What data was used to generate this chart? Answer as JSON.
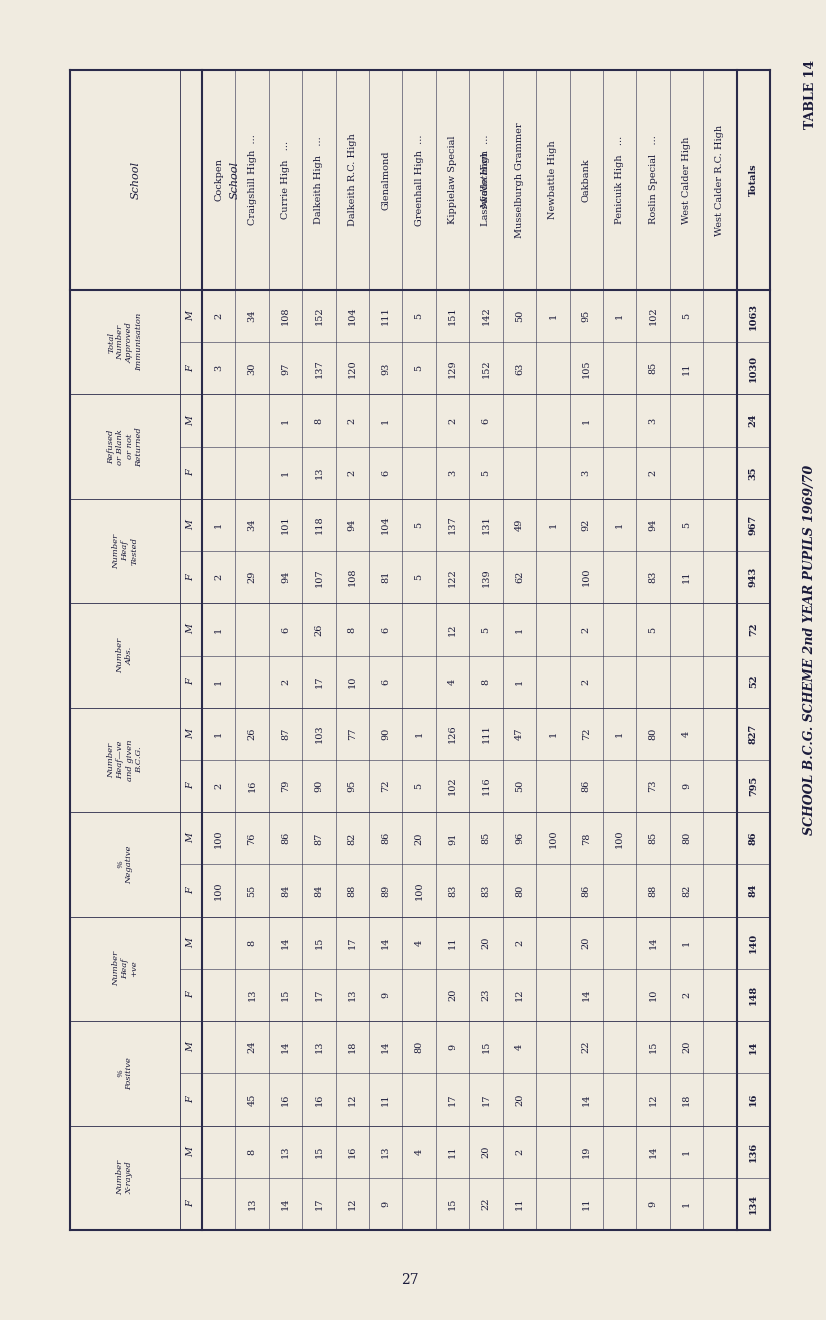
{
  "title": "SCHOOL B.C.G. SCHEME 2nd YEAR PUPILS 1969/70",
  "table_label": "TABLE 14",
  "region_label": "Midlothian",
  "col_label": "School",
  "schools": [
    "Cockpen",
    "Craigshill High  ...",
    "Currie High   ...",
    "Dalkeith High   ...",
    "Dalkeith R.C. High",
    "Glenalmond",
    "Greenhall High  ...",
    "Kippielaw Special",
    "Lasswade High  ...",
    "Musselburgh Grammer",
    "Newbattle High",
    "Oakbank",
    "Penicuik High   ...",
    "Roslin Special   ...",
    "West Calder High",
    "West Calder R.C. High",
    "Totals"
  ],
  "col_groups": [
    {
      "header": "Total\nNumber\nApproved\nImmunisation",
      "sub": [
        "M",
        "F"
      ],
      "data_M": [
        2,
        34,
        108,
        152,
        104,
        111,
        5,
        151,
        142,
        50,
        1,
        95,
        1,
        102,
        5,
        "",
        1063
      ],
      "data_F": [
        3,
        30,
        97,
        137,
        120,
        93,
        5,
        129,
        152,
        63,
        "",
        105,
        "",
        85,
        11,
        "",
        1030
      ]
    },
    {
      "header": "Refused\nor Blank\nor not\nReturned",
      "sub": [
        "M",
        "F"
      ],
      "data_M": [
        "",
        "",
        1,
        8,
        2,
        1,
        "",
        2,
        6,
        "",
        "",
        1,
        "",
        3,
        "",
        "",
        24
      ],
      "data_F": [
        "",
        "",
        1,
        13,
        2,
        6,
        "",
        3,
        5,
        "",
        "",
        3,
        "",
        2,
        "",
        "",
        35
      ]
    },
    {
      "header": "Number\nHeaf\nTested",
      "sub": [
        "M",
        "F"
      ],
      "data_M": [
        1,
        34,
        101,
        118,
        94,
        104,
        5,
        137,
        131,
        49,
        1,
        92,
        1,
        94,
        5,
        "",
        967
      ],
      "data_F": [
        2,
        29,
        94,
        107,
        108,
        81,
        5,
        122,
        139,
        62,
        "",
        100,
        "",
        83,
        11,
        "",
        943
      ]
    },
    {
      "header": "Number\nAbs.",
      "sub": [
        "M",
        "F"
      ],
      "data_M": [
        1,
        "",
        6,
        26,
        8,
        6,
        "",
        12,
        5,
        1,
        "",
        2,
        "",
        5,
        "",
        "",
        72
      ],
      "data_F": [
        1,
        "",
        2,
        17,
        10,
        6,
        "",
        4,
        8,
        1,
        "",
        2,
        "",
        "",
        "",
        "",
        52
      ]
    },
    {
      "header": "Number\nHeaf—ve\nand given\nB.C.G.",
      "sub": [
        "M",
        "F"
      ],
      "data_M": [
        1,
        26,
        87,
        103,
        77,
        90,
        1,
        126,
        111,
        47,
        1,
        72,
        1,
        80,
        4,
        "",
        827
      ],
      "data_F": [
        2,
        16,
        79,
        90,
        95,
        72,
        5,
        102,
        116,
        50,
        "",
        86,
        "",
        73,
        9,
        "",
        795
      ]
    },
    {
      "header": "%\nNegative",
      "sub": [
        "M",
        "F"
      ],
      "data_M": [
        100,
        76,
        86,
        87,
        82,
        86,
        20,
        91,
        85,
        96,
        100,
        78,
        100,
        85,
        80,
        "",
        86
      ],
      "data_F": [
        100,
        55,
        84,
        84,
        88,
        89,
        100,
        83,
        83,
        80,
        "",
        86,
        "",
        88,
        82,
        "",
        84
      ]
    },
    {
      "header": "Number\nHeaf\n+ve",
      "sub": [
        "M",
        "F"
      ],
      "data_M": [
        "",
        8,
        14,
        15,
        17,
        14,
        4,
        11,
        20,
        2,
        "",
        20,
        "",
        14,
        1,
        "",
        140
      ],
      "data_F": [
        "",
        13,
        15,
        17,
        13,
        9,
        "",
        20,
        23,
        12,
        "",
        14,
        "",
        10,
        2,
        "",
        148
      ]
    },
    {
      "header": "%\nPositive",
      "sub": [
        "M",
        "F"
      ],
      "data_M": [
        "",
        24,
        14,
        13,
        18,
        14,
        80,
        9,
        15,
        4,
        "",
        22,
        "",
        15,
        20,
        "",
        14
      ],
      "data_F": [
        "",
        45,
        16,
        16,
        12,
        11,
        "",
        17,
        17,
        20,
        "",
        14,
        "",
        12,
        18,
        "",
        16
      ]
    },
    {
      "header": "Number\nX-rayed",
      "sub": [
        "M",
        "F"
      ],
      "data_M": [
        "",
        8,
        13,
        15,
        16,
        13,
        4,
        11,
        20,
        2,
        "",
        19,
        "",
        14,
        1,
        "",
        136
      ],
      "data_F": [
        "",
        13,
        14,
        17,
        12,
        9,
        "",
        15,
        22,
        11,
        "",
        11,
        "",
        9,
        1,
        "",
        134
      ]
    }
  ],
  "bg_color": "#f0ebe0",
  "text_color": "#1a1a3a",
  "line_color": "#2a2a4a",
  "page_number": "27"
}
